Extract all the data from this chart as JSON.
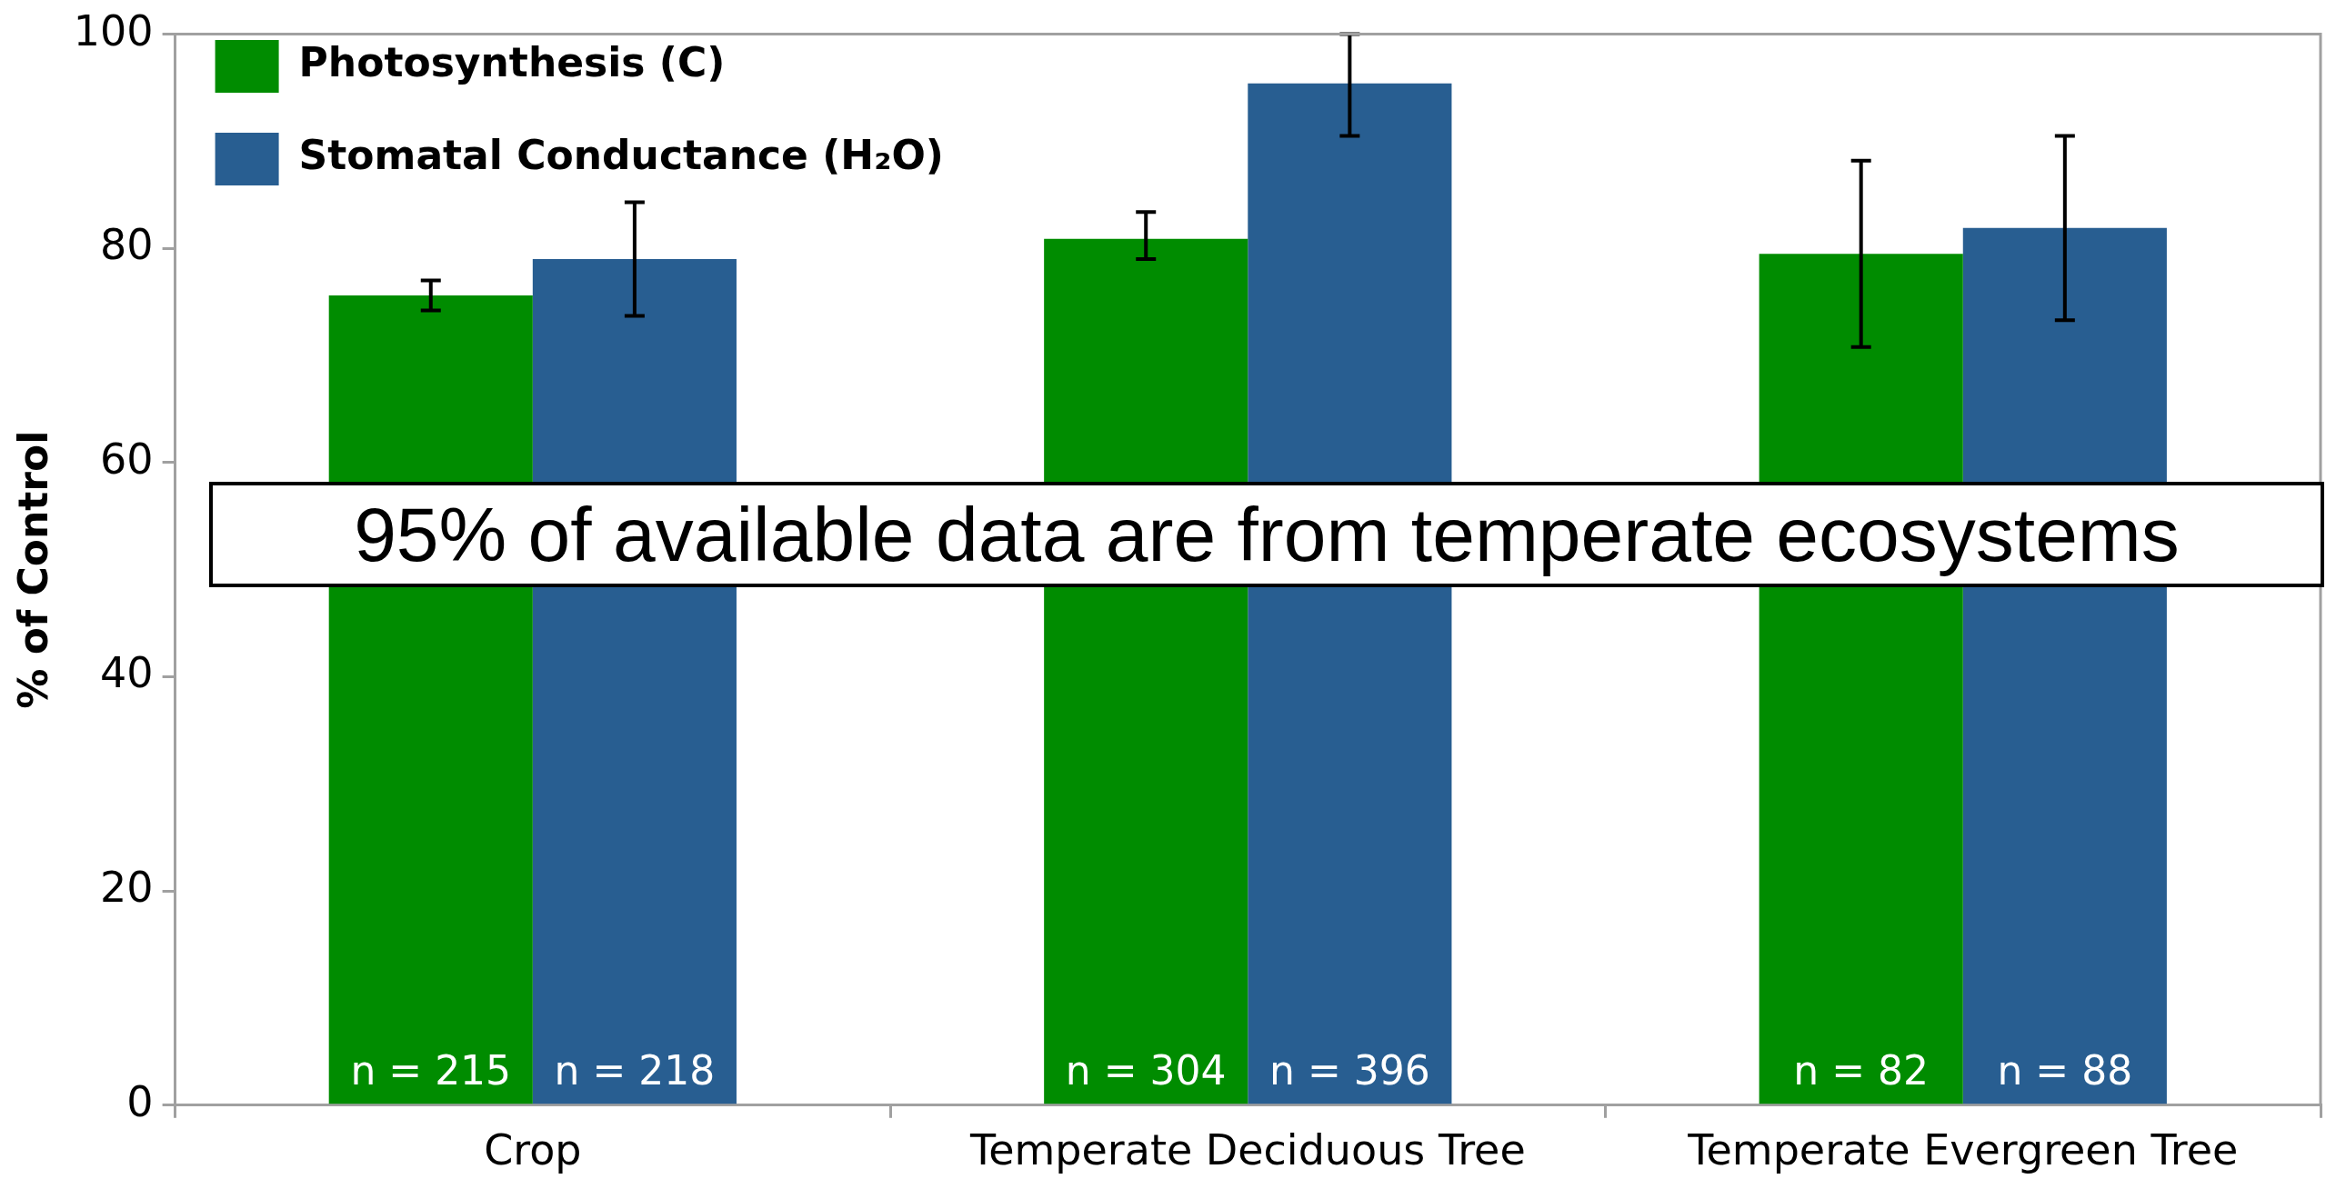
{
  "chart_data": {
    "type": "bar",
    "ylabel": "% of Control",
    "categories": [
      "Crop",
      "Temperate Deciduous Tree",
      "Temperate Evergreen Tree"
    ],
    "series": [
      {
        "name": "Photosynthesis (C)",
        "color": "#008c00",
        "values": [
          75.6,
          80.9,
          79.5
        ],
        "errors": [
          [
            74.2,
            77.0
          ],
          [
            79.0,
            83.4
          ],
          [
            70.8,
            88.2
          ]
        ]
      },
      {
        "name": "Stomatal Conductance (H₂O)",
        "color": "#285e91",
        "values": [
          79.0,
          95.4,
          81.9
        ],
        "errors": [
          [
            73.7,
            84.3
          ],
          [
            90.5,
            100
          ],
          [
            73.3,
            90.5
          ]
        ]
      }
    ],
    "ylim": [
      0,
      100
    ],
    "yticks": [
      0,
      20,
      40,
      60,
      80,
      100
    ],
    "grid": false,
    "legend": "top left",
    "annotations": [
      "95% of available data are from temperate ecosystems",
      {
        "text": "n = 215",
        "x": "Crop",
        "y": 0
      },
      {
        "text": "n = 218",
        "x": "Crop",
        "y": 0
      },
      {
        "text": "n = 304",
        "x": "Temperate Deciduous Tree",
        "y": 0
      },
      {
        "text": "n = 396",
        "x": "Temperate Deciduous Tree",
        "y": 0
      },
      {
        "text": "n = 82",
        "x": "Temperate Evergreen Tree",
        "y": 0
      },
      {
        "text": "n = 88",
        "x": "Temperate Evergreen Tree",
        "y": 0
      }
    ]
  }
}
